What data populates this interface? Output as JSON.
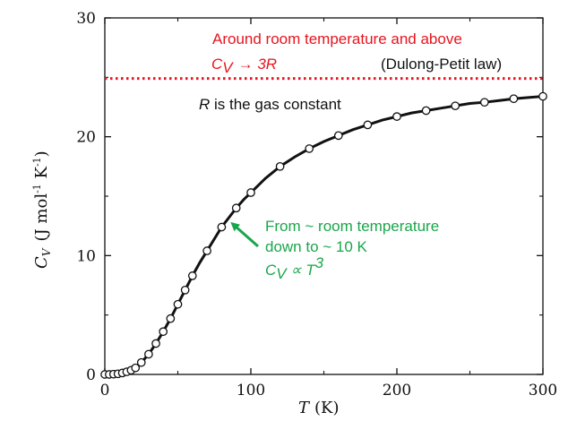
{
  "chart_data": {
    "type": "scatter",
    "title": "",
    "xlabel": {
      "var": "T",
      "unit": "(K)"
    },
    "ylabel": {
      "var": "C",
      "sub": "V",
      "unit_pre": "(J mol",
      "exp1": "-1",
      "unit_mid": " K",
      "exp2": "-1",
      "unit_post": ")"
    },
    "xlim": [
      0,
      300
    ],
    "ylim": [
      0,
      30
    ],
    "xticks": [
      0,
      100,
      200,
      300
    ],
    "yticks": [
      0,
      10,
      20,
      30
    ],
    "xtick_labels": [
      "0",
      "100",
      "200",
      "300"
    ],
    "ytick_labels": [
      "0",
      "10",
      "20",
      "30"
    ],
    "grid": false,
    "series": [
      {
        "kind": "points",
        "x": [
          0,
          3,
          6,
          9,
          12,
          15,
          18,
          21,
          25,
          30,
          35,
          40,
          45,
          50,
          55,
          60,
          70,
          80,
          90,
          100,
          120,
          140,
          160,
          180,
          200,
          220,
          240,
          260,
          280,
          300
        ],
        "y": [
          0.0,
          0.0,
          0.02,
          0.05,
          0.12,
          0.22,
          0.35,
          0.55,
          1.0,
          1.7,
          2.6,
          3.6,
          4.7,
          5.9,
          7.1,
          8.3,
          10.4,
          12.4,
          14.0,
          15.3,
          17.5,
          19.0,
          20.1,
          21.0,
          21.7,
          22.2,
          22.6,
          22.9,
          23.2,
          23.4
        ]
      },
      {
        "kind": "curve",
        "x": [
          0,
          5,
          10,
          15,
          20,
          25,
          30,
          35,
          40,
          45,
          50,
          55,
          60,
          65,
          70,
          75,
          80,
          85,
          90,
          95,
          100,
          110,
          120,
          130,
          140,
          150,
          160,
          170,
          180,
          190,
          200,
          210,
          220,
          230,
          240,
          250,
          260,
          270,
          280,
          290,
          300
        ],
        "y": [
          0,
          0.01,
          0.08,
          0.22,
          0.45,
          1.0,
          1.7,
          2.6,
          3.6,
          4.7,
          5.9,
          7.1,
          8.3,
          9.4,
          10.4,
          11.4,
          12.4,
          13.2,
          14.0,
          14.7,
          15.3,
          16.5,
          17.5,
          18.3,
          19.0,
          19.6,
          20.1,
          20.6,
          21.0,
          21.4,
          21.7,
          22.0,
          22.2,
          22.4,
          22.6,
          22.8,
          22.9,
          23.05,
          23.2,
          23.3,
          23.4
        ]
      }
    ],
    "reference_line": {
      "y": 24.9,
      "style": "dotted",
      "color": "#e8141e"
    },
    "annotations": {
      "room_temp": "Around room temperature and above",
      "cv_limit_var": "C",
      "cv_limit_sub": "V",
      "cv_limit_rest": "→ 3R",
      "dulong_petit": "(Dulong-Petit law)",
      "gas_constant_var": "R",
      "gas_constant_rest": " is the gas constant",
      "t3_line1": "From ~ room temperature",
      "t3_line2": "down to ~ 10 K",
      "t3_var": "C",
      "t3_sub": "V",
      "t3_rest": " ∝ T",
      "t3_exp": "3",
      "arrow_target": {
        "x": 85,
        "y": 12.9
      }
    },
    "colors": {
      "red": "#e8141e",
      "green": "#1aa64b",
      "black": "#111111"
    }
  }
}
